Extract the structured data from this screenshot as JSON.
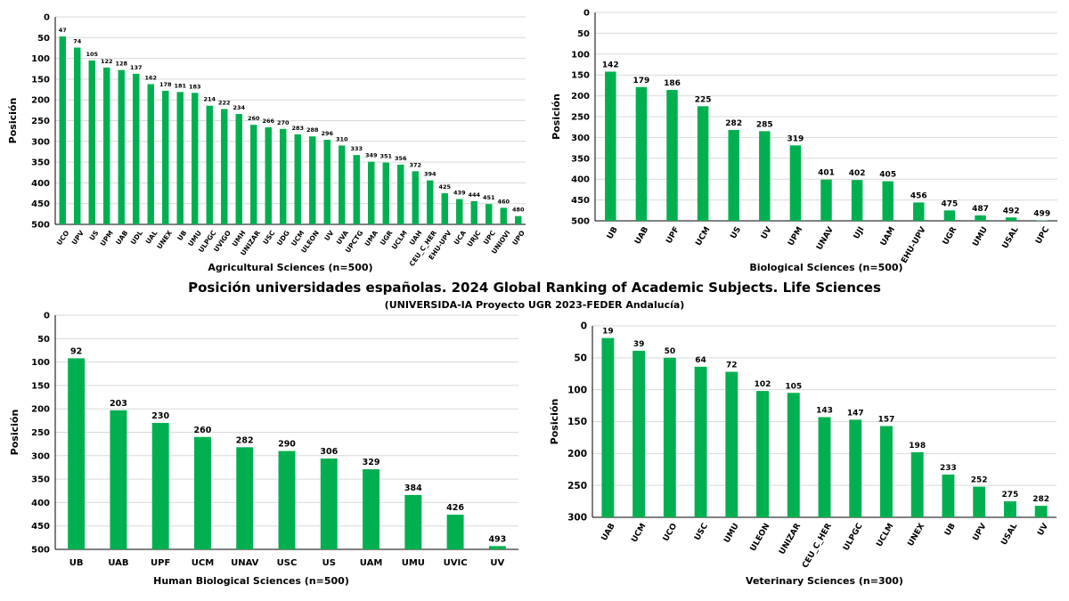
{
  "title": "Posición universidades españolas. 2024 Global Ranking of Academic Subjects. Life Sciences",
  "subtitle": "(UNIVERSIDA-IA  Proyecto UGR 2023-FEDER  Andalucía)",
  "colors": {
    "bar": "#00b050",
    "axis": "#000000",
    "grid": "#d9d9d9"
  },
  "chart_data": [
    {
      "type": "bar",
      "title": "Agricultural Sciences (n=500)",
      "ylabel": "Posición",
      "y_inverted": true,
      "ylim": [
        0,
        500
      ],
      "yticks": [
        0,
        50,
        100,
        150,
        200,
        250,
        300,
        350,
        400,
        450,
        500
      ],
      "categories": [
        "UCO",
        "UPV",
        "US",
        "UPM",
        "UAB",
        "UDL",
        "UAL",
        "UNEX",
        "UB",
        "UMU",
        "ULPGC",
        "UVIGO",
        "UMH",
        "UNIZAR",
        "USC",
        "UDG",
        "UCM",
        "ULEON",
        "UV",
        "UVA",
        "UPCTG",
        "UMA",
        "UGR",
        "UCLM",
        "UAH",
        "CEU_C_HER",
        "EHU-UPV",
        "UCA",
        "URJC",
        "UPC",
        "UNIOVI",
        "UPO"
      ],
      "values": [
        47,
        74,
        105,
        122,
        128,
        137,
        162,
        178,
        181,
        183,
        214,
        222,
        234,
        260,
        266,
        270,
        283,
        288,
        296,
        310,
        333,
        349,
        351,
        356,
        372,
        394,
        425,
        439,
        444,
        451,
        460,
        480
      ]
    },
    {
      "type": "bar",
      "title": "Biological Sciences (n=500)",
      "ylabel": "Posición",
      "y_inverted": true,
      "ylim": [
        0,
        500
      ],
      "yticks": [
        0,
        50,
        100,
        150,
        200,
        250,
        300,
        350,
        400,
        450,
        500
      ],
      "categories": [
        "UB",
        "UAB",
        "UPF",
        "UCM",
        "US",
        "UV",
        "UPM",
        "UNAV",
        "UJI",
        "UAM",
        "EHU-UPV",
        "UGR",
        "UMU",
        "USAL",
        "UPC"
      ],
      "values": [
        142,
        179,
        186,
        225,
        282,
        285,
        319,
        401,
        402,
        405,
        456,
        475,
        487,
        492,
        499
      ]
    },
    {
      "type": "bar",
      "title": "Human Biological Sciences (n=500)",
      "ylabel": "Posición",
      "y_inverted": true,
      "ylim": [
        0,
        500
      ],
      "yticks": [
        0,
        50,
        100,
        150,
        200,
        250,
        300,
        350,
        400,
        450,
        500
      ],
      "categories": [
        "UB",
        "UAB",
        "UPF",
        "UCM",
        "UNAV",
        "USC",
        "US",
        "UAM",
        "UMU",
        "UVIC",
        "UV"
      ],
      "values": [
        92,
        203,
        230,
        260,
        282,
        290,
        306,
        329,
        384,
        426,
        493
      ]
    },
    {
      "type": "bar",
      "title": "Veterinary Sciences (n=300)",
      "ylabel": "Posición",
      "y_inverted": true,
      "ylim": [
        0,
        300
      ],
      "yticks": [
        0,
        50,
        100,
        150,
        200,
        250,
        300
      ],
      "categories": [
        "UAB",
        "UCM",
        "UCO",
        "USC",
        "UMU",
        "ULEON",
        "UNIZAR",
        "CEU_C_HER",
        "ULPGC",
        "UCLM",
        "UNEX",
        "UB",
        "UPV",
        "USAL",
        "UV"
      ],
      "values": [
        19,
        39,
        50,
        64,
        72,
        102,
        105,
        143,
        147,
        157,
        198,
        233,
        252,
        275,
        282
      ]
    }
  ]
}
